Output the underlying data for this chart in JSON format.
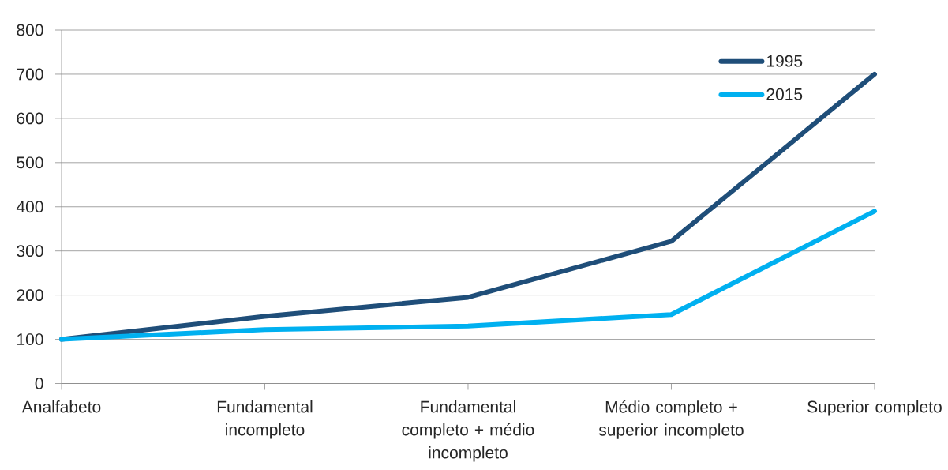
{
  "chart_data": {
    "type": "line",
    "categories": [
      "Analfabeto",
      "Fundamental incompleto",
      "Fundamental completo + médio incompleto",
      "Médio completo + superior incompleto",
      "Superior completo"
    ],
    "series": [
      {
        "name": "1995",
        "color": "#1f4e79",
        "values": [
          100,
          152,
          195,
          322,
          700
        ]
      },
      {
        "name": "2015",
        "color": "#00b0f0",
        "values": [
          100,
          122,
          130,
          156,
          390
        ]
      }
    ],
    "ylim": [
      0,
      800
    ],
    "yticks": [
      0,
      100,
      200,
      300,
      400,
      500,
      600,
      700,
      800
    ],
    "grid": "y",
    "legend": "top right",
    "marker": "none",
    "line_style": "solid"
  }
}
